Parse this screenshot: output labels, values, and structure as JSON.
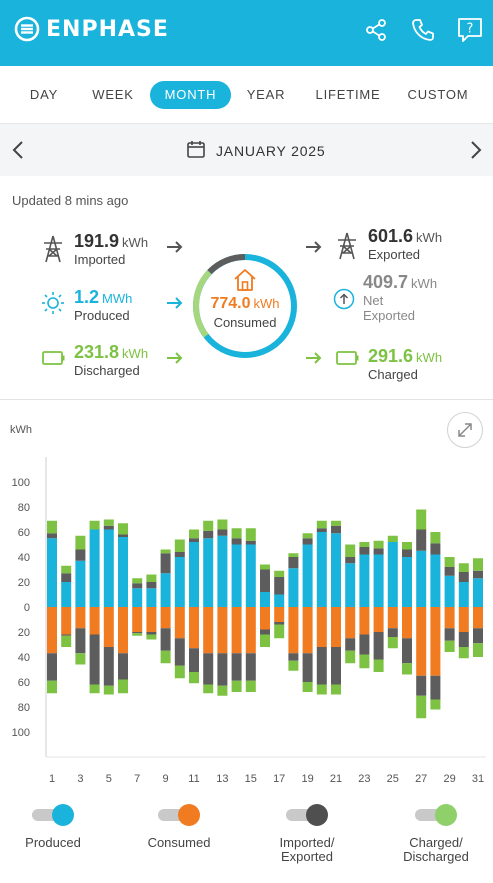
{
  "header": {
    "brand": "ENPHASE",
    "icons": [
      "share-icon",
      "phone-icon",
      "help-icon"
    ],
    "color": "#1ab3dc"
  },
  "tabs": [
    {
      "label": "DAY",
      "active": false
    },
    {
      "label": "WEEK",
      "active": false
    },
    {
      "label": "MONTH",
      "active": true
    },
    {
      "label": "YEAR",
      "active": false
    },
    {
      "label": "LIFETIME",
      "active": false
    },
    {
      "label": "CUSTOM",
      "active": false
    }
  ],
  "date_nav": {
    "label": "JANUARY 2025"
  },
  "summary": {
    "updated": "Updated 8 mins ago",
    "imported": {
      "value": "191.9",
      "unit": "kWh",
      "label": "Imported"
    },
    "produced": {
      "value": "1.2",
      "unit": "MWh",
      "label": "Produced"
    },
    "discharged": {
      "value": "231.8",
      "unit": "kWh",
      "label": "Discharged"
    },
    "consumed": {
      "value": "774.0",
      "unit": "kWh",
      "label": "Consumed"
    },
    "exported": {
      "value": "601.6",
      "unit": "kWh",
      "label": "Exported"
    },
    "net_exported": {
      "value": "409.7",
      "unit": "kWh",
      "label_line1": "Net",
      "label_line2": "Exported"
    },
    "charged": {
      "value": "291.6",
      "unit": "kWh",
      "label": "Charged"
    }
  },
  "chart_data": {
    "type": "bar",
    "ylabel": "kWh",
    "ylim": [
      -100,
      100
    ],
    "y_ticks": [
      "100",
      "80",
      "60",
      "40",
      "20",
      "0",
      "20",
      "40",
      "60",
      "80",
      "100"
    ],
    "x_tick_labels": [
      "1",
      "3",
      "5",
      "7",
      "9",
      "11",
      "13",
      "15",
      "17",
      "19",
      "21",
      "23",
      "25",
      "27",
      "29",
      "31"
    ],
    "days": [
      1,
      2,
      3,
      4,
      5,
      6,
      7,
      8,
      9,
      10,
      11,
      12,
      13,
      14,
      15,
      16,
      17,
      18,
      19,
      20,
      21,
      22,
      23,
      24,
      25,
      26,
      27,
      28,
      29,
      30,
      31
    ],
    "series": [
      {
        "name": "Produced",
        "color": "#1ab3dc",
        "values": [
          55,
          20,
          37,
          62,
          62,
          56,
          15,
          15,
          27,
          40,
          52,
          55,
          57,
          50,
          50,
          12,
          10,
          31,
          50,
          60,
          59,
          35,
          42,
          42,
          52,
          40,
          45,
          42,
          25,
          20,
          23
        ]
      },
      {
        "name": "Exported",
        "color": "#5d5d5d",
        "values": [
          4,
          7,
          9,
          0,
          3,
          2,
          4,
          5,
          16,
          4,
          3,
          6,
          5,
          5,
          3,
          18,
          14,
          9,
          5,
          3,
          6,
          5,
          6,
          5,
          0,
          6,
          17,
          9,
          7,
          8,
          6
        ]
      },
      {
        "name": "Charged",
        "color": "#7dc242",
        "values": [
          10,
          6,
          11,
          7,
          5,
          9,
          4,
          6,
          3,
          10,
          7,
          8,
          8,
          8,
          10,
          4,
          5,
          3,
          4,
          6,
          4,
          10,
          4,
          6,
          5,
          6,
          16,
          9,
          8,
          7,
          10
        ]
      },
      {
        "name": "Consumed",
        "color": "#f07b21",
        "values": [
          -37,
          -22,
          -17,
          -22,
          -32,
          -37,
          -20,
          -20,
          -17,
          -25,
          -33,
          -37,
          -37,
          -37,
          -37,
          -18,
          -12,
          -37,
          -37,
          -32,
          -32,
          -25,
          -22,
          -20,
          -17,
          -25,
          -55,
          -55,
          -17,
          -20,
          -17
        ]
      },
      {
        "name": "Imported",
        "color": "#5d5d5d",
        "values": [
          -22,
          -1,
          -20,
          -40,
          -31,
          -21,
          -1,
          -2,
          -18,
          -22,
          -19,
          -25,
          -26,
          -22,
          -22,
          -4,
          -2,
          -6,
          -23,
          -30,
          -30,
          -10,
          -16,
          -22,
          -7,
          -20,
          -16,
          -19,
          -10,
          -12,
          -12
        ]
      },
      {
        "name": "Discharged",
        "color": "#7dc242",
        "values": [
          -10,
          -9,
          -9,
          -7,
          -7,
          -11,
          -2,
          -4,
          -10,
          -10,
          -9,
          -7,
          -8,
          -9,
          -9,
          -10,
          -11,
          -8,
          -8,
          -8,
          -8,
          -10,
          -11,
          -10,
          -9,
          -9,
          -18,
          -8,
          -9,
          -9,
          -11
        ]
      }
    ]
  },
  "legend": [
    {
      "label_line1": "Produced",
      "label_line2": "",
      "color": "#1ab3dc"
    },
    {
      "label_line1": "Consumed",
      "label_line2": "",
      "color": "#f07b21"
    },
    {
      "label_line1": "Imported/",
      "label_line2": "Exported",
      "color": "#4f4f4f"
    },
    {
      "label_line1": "Charged/",
      "label_line2": "Discharged",
      "color": "#8fd06a"
    }
  ]
}
